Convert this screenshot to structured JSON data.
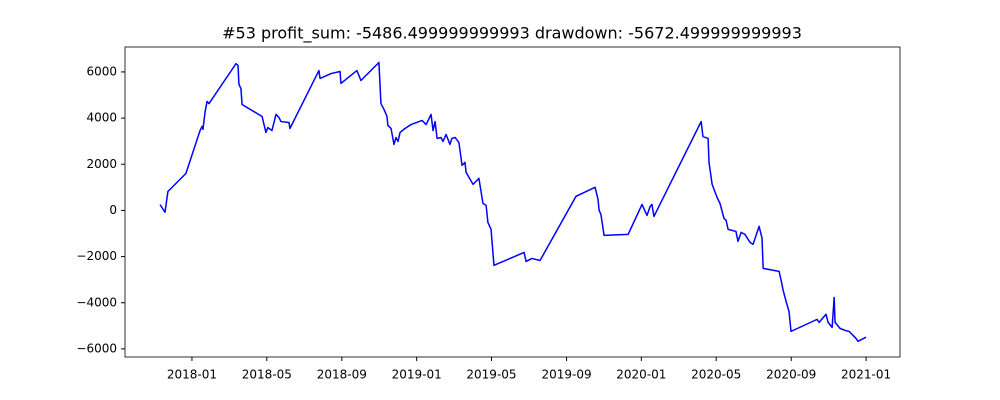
{
  "chart_data": {
    "type": "line",
    "title": "#53   profit_sum: -5486.499999999993 drawdown: -5672.499999999993",
    "xlim": [
      2017.702,
      2021.151
    ],
    "ylim": [
      -6350,
      7080
    ],
    "xticks": [
      {
        "value": 2018.0,
        "label": "2018-01"
      },
      {
        "value": 2018.333,
        "label": "2018-05"
      },
      {
        "value": 2018.667,
        "label": "2018-09"
      },
      {
        "value": 2019.0,
        "label": "2019-01"
      },
      {
        "value": 2019.333,
        "label": "2019-05"
      },
      {
        "value": 2019.667,
        "label": "2019-09"
      },
      {
        "value": 2020.0,
        "label": "2020-01"
      },
      {
        "value": 2020.333,
        "label": "2020-05"
      },
      {
        "value": 2020.667,
        "label": "2020-09"
      },
      {
        "value": 2021.0,
        "label": "2021-01"
      }
    ],
    "yticks": [
      {
        "value": 6000,
        "label": "6000"
      },
      {
        "value": 4000,
        "label": "4000"
      },
      {
        "value": 2000,
        "label": "2000"
      },
      0,
      {
        "value": -2000,
        "label": "−2000"
      },
      {
        "value": -4000,
        "label": "−4000"
      },
      {
        "value": -6000,
        "label": "−6000"
      }
    ],
    "series": [
      {
        "color": "#0000ff",
        "x": [
          2017.858,
          2017.88,
          2017.893,
          2017.973,
          2018.036,
          2018.045,
          2018.049,
          2018.058,
          2018.067,
          2018.076,
          2018.196,
          2018.205,
          2018.209,
          2018.218,
          2018.223,
          2018.312,
          2018.329,
          2018.338,
          2018.356,
          2018.374,
          2018.387,
          2018.396,
          2018.432,
          2018.436,
          2018.565,
          2018.57,
          2018.619,
          2018.659,
          2018.663,
          2018.734,
          2018.752,
          2018.832,
          2018.841,
          2018.855,
          2018.868,
          2018.872,
          2018.886,
          2018.899,
          2018.908,
          2018.917,
          2018.926,
          2018.948,
          2018.975,
          2019.024,
          2019.042,
          2019.064,
          2019.073,
          2019.082,
          2019.091,
          2019.108,
          2019.117,
          2019.131,
          2019.148,
          2019.157,
          2019.171,
          2019.188,
          2019.202,
          2019.215,
          2019.22,
          2019.251,
          2019.277,
          2019.295,
          2019.309,
          2019.317,
          2019.331,
          2019.344,
          2019.478,
          2019.487,
          2019.513,
          2019.549,
          2019.709,
          2019.794,
          2019.807,
          2019.812,
          2019.82,
          2019.834,
          2019.941,
          2020.003,
          2020.025,
          2020.039,
          2020.047,
          2020.056,
          2020.266,
          2020.274,
          2020.297,
          2020.301,
          2020.315,
          2020.337,
          2020.35,
          2020.368,
          2020.377,
          2020.386,
          2020.421,
          2020.43,
          2020.444,
          2020.461,
          2020.484,
          2020.497,
          2020.524,
          2020.537,
          2020.542,
          2020.613,
          2020.622,
          2020.631,
          2020.644,
          2020.657,
          2020.666,
          2020.782,
          2020.791,
          2020.822,
          2020.831,
          2020.849,
          2020.858,
          2020.862,
          2020.884,
          2020.907,
          2020.924,
          2020.942,
          2020.955,
          2020.964,
          2021.0
        ],
        "values": [
          250,
          -80,
          820,
          1600,
          3460,
          3640,
          3510,
          4240,
          4720,
          4630,
          6360,
          6280,
          5460,
          5280,
          4590,
          4070,
          3380,
          3590,
          3460,
          4160,
          4030,
          3850,
          3810,
          3550,
          6060,
          5720,
          5930,
          6020,
          5500,
          6060,
          5630,
          6410,
          4630,
          4370,
          4070,
          3680,
          3550,
          2860,
          3160,
          2990,
          3380,
          3550,
          3720,
          3900,
          3720,
          4160,
          3460,
          3850,
          3120,
          3160,
          2990,
          3290,
          2860,
          3120,
          3160,
          2940,
          1950,
          2080,
          1650,
          1130,
          1390,
          300,
          220,
          -520,
          -820,
          -2380,
          -1820,
          -2210,
          -2080,
          -2170,
          610,
          1000,
          480,
          0,
          -170,
          -1080,
          -1040,
          260,
          -220,
          170,
          260,
          -260,
          3850,
          3200,
          3120,
          2080,
          1130,
          560,
          300,
          -350,
          -430,
          -820,
          -910,
          -1340,
          -950,
          -1040,
          -1390,
          -1470,
          -690,
          -1210,
          -2510,
          -2640,
          -3030,
          -3460,
          -3940,
          -4370,
          -5240,
          -4720,
          -4850,
          -4500,
          -4850,
          -5070,
          -3770,
          -4850,
          -5110,
          -5200,
          -5240,
          -5410,
          -5540,
          -5670,
          -5490
        ]
      }
    ]
  }
}
